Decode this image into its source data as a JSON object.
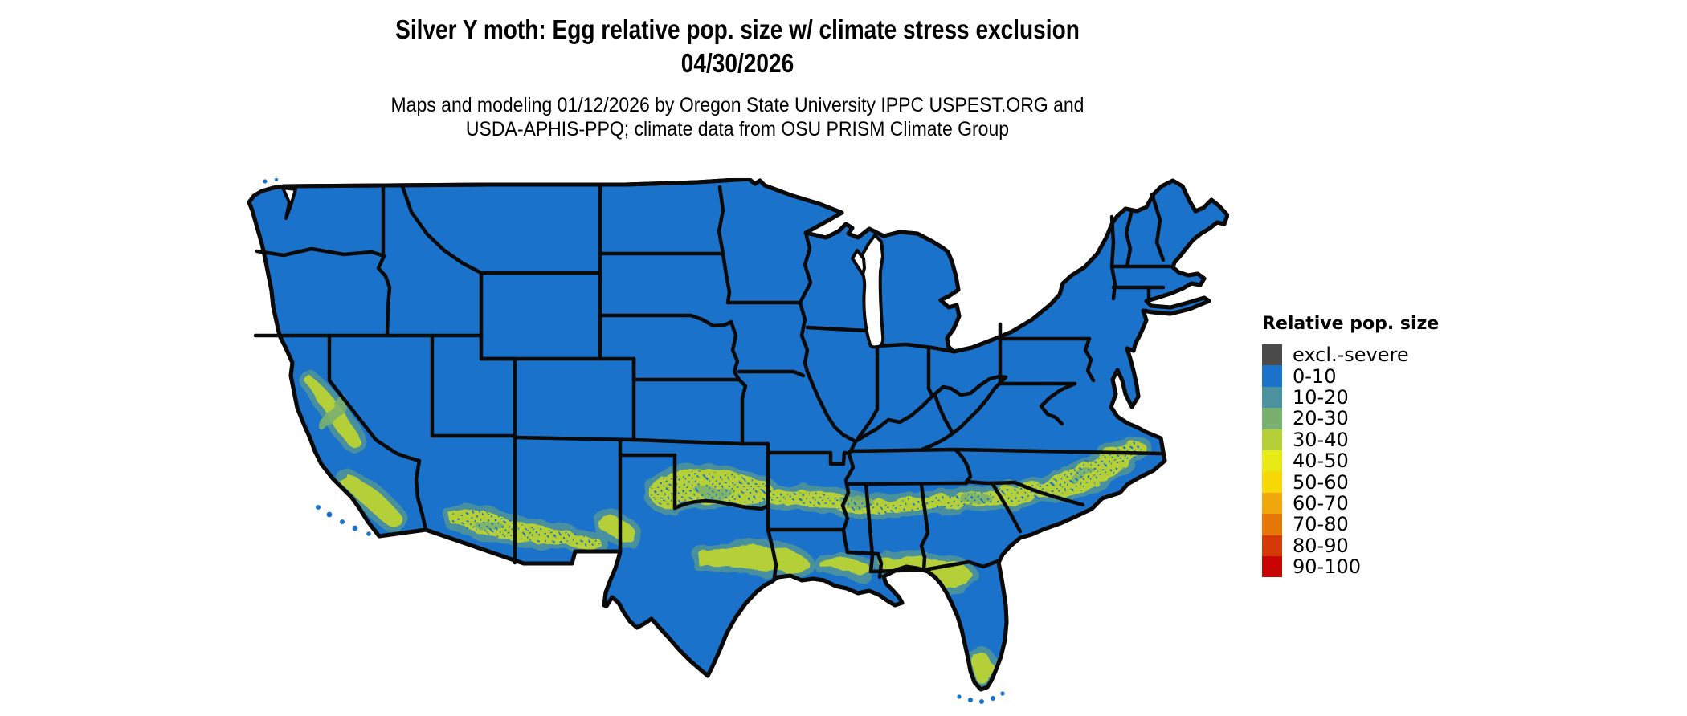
{
  "title": {
    "line1": "Silver Y moth: Egg relative pop. size w/ climate stress exclusion",
    "line2": "04/30/2026"
  },
  "subtitle": {
    "line1": "Maps and modeling 01/12/2026 by Oregon State University IPPC USPEST.ORG and",
    "line2": "USDA-APHIS-PPQ; climate data from OSU PRISM Climate Group"
  },
  "legend": {
    "title": "Relative pop. size",
    "items": [
      {
        "label": "excl.-severe",
        "color": "#4a4a4a"
      },
      {
        "label": "0-10",
        "color": "#1b72cb"
      },
      {
        "label": "10-20",
        "color": "#4b919e"
      },
      {
        "label": "20-30",
        "color": "#79b06f"
      },
      {
        "label": "30-40",
        "color": "#b4cf38"
      },
      {
        "label": "40-50",
        "color": "#e8ea15"
      },
      {
        "label": "50-60",
        "color": "#f6d807"
      },
      {
        "label": "60-70",
        "color": "#efa80c"
      },
      {
        "label": "70-80",
        "color": "#e67607"
      },
      {
        "label": "80-90",
        "color": "#d63808"
      },
      {
        "label": "90-100",
        "color": "#c80404"
      }
    ]
  },
  "colors": {
    "map_base": "#1b72cb",
    "band_low_fringe": "#4b919e",
    "band_mid": "#79b06f",
    "band_high": "#b4cf38",
    "state_border": "#0a0a0a",
    "background": "#ffffff"
  },
  "chart_data": {
    "type": "heatmap",
    "title": "Silver Y moth: Egg relative pop. size w/ climate stress exclusion 04/30/2026",
    "region": "Contiguous United States",
    "value_name": "Relative pop. size",
    "classes": [
      "excl.-severe",
      "0-10",
      "10-20",
      "20-30",
      "30-40",
      "40-50",
      "50-60",
      "60-70",
      "70-80",
      "80-90",
      "90-100"
    ],
    "legend_position": "right",
    "observed_pattern": [
      {
        "area": "Most of CONUS (north, plains, midwest, northeast)",
        "class": "0-10"
      },
      {
        "area": "California Central Valley and southern California coast/ranges",
        "class": "30-40 with 10-20 fringe"
      },
      {
        "area": "Southern Arizona into southwest New Mexico",
        "class": "30-40 scattered"
      },
      {
        "area": "Band from west/central Texas through southern Oklahoma, Arkansas-Louisiana border, Mississippi, Alabama, Georgia, South Carolina to coastal North Carolina",
        "class": "30-40 with 10-20 fringe"
      },
      {
        "area": "Texas Gulf coastal bend and coastal Louisiana",
        "class": "30-40"
      },
      {
        "area": "Northern Florida panhandle band and southern Florida tip",
        "class": "30-40"
      },
      {
        "area": "No areas shown in 40-100 or excluded classes",
        "class": "none"
      }
    ]
  }
}
